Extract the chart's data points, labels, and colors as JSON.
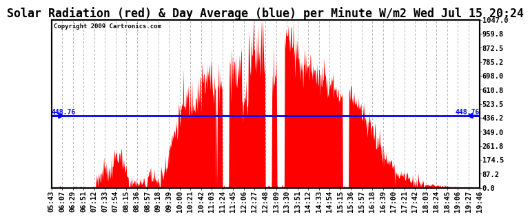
{
  "title": "Solar Radiation (red) & Day Average (blue) per Minute W/m2 Wed Jul 15 20:24",
  "copyright_text": "Copyright 2009 Cartronics.com",
  "avg_value": 448.76,
  "y_max": 1047.0,
  "y_min": 0.0,
  "y_ticks": [
    0.0,
    87.2,
    174.5,
    261.8,
    349.0,
    436.2,
    523.5,
    610.8,
    698.0,
    785.2,
    872.5,
    959.8,
    1047.0
  ],
  "x_labels": [
    "05:43",
    "06:07",
    "06:29",
    "06:51",
    "07:12",
    "07:33",
    "07:54",
    "08:15",
    "08:36",
    "08:57",
    "09:18",
    "09:39",
    "10:00",
    "10:21",
    "10:42",
    "11:03",
    "11:24",
    "11:45",
    "12:06",
    "12:27",
    "12:48",
    "13:09",
    "13:30",
    "13:51",
    "14:12",
    "14:33",
    "14:54",
    "15:15",
    "15:36",
    "15:57",
    "16:18",
    "16:39",
    "17:00",
    "17:21",
    "17:42",
    "18:03",
    "18:24",
    "18:45",
    "19:06",
    "19:27",
    "19:46"
  ],
  "area_color": "#FF0000",
  "line_color": "#0000FF",
  "bg_color": "#FFFFFF",
  "grid_color": "#AAAAAA",
  "title_fontsize": 12,
  "label_fontsize": 7.5,
  "copyright_fontsize": 6.5
}
